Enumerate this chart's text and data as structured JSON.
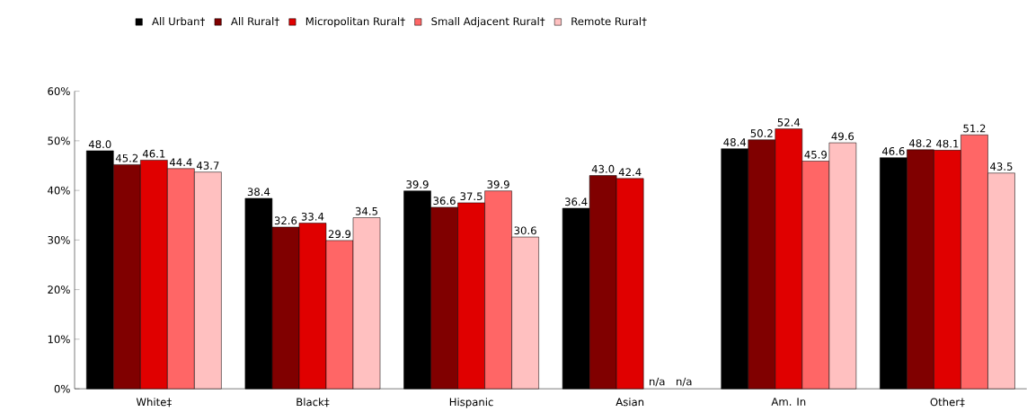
{
  "chart_data": {
    "type": "bar",
    "categories": [
      "White‡",
      "Black‡",
      "Hispanic",
      "Asian",
      "Am. In",
      "Other‡"
    ],
    "series": [
      {
        "name": "All Urban†",
        "color": "#000000",
        "values": [
          48.0,
          38.4,
          39.9,
          36.4,
          48.4,
          46.6
        ],
        "value_labels": [
          "48.0",
          "38.4",
          "39.9",
          "36.4",
          "48.4",
          "46.6"
        ]
      },
      {
        "name": "All Rural†",
        "color": "#800000",
        "values": [
          45.2,
          32.6,
          36.6,
          43.0,
          50.2,
          48.2
        ],
        "value_labels": [
          "45.2",
          "32.6",
          "36.6",
          "43.0",
          "50.2",
          "48.2"
        ]
      },
      {
        "name": "Micropolitan Rural†",
        "color": "#e00000",
        "values": [
          46.1,
          33.4,
          37.5,
          42.4,
          52.4,
          48.1
        ],
        "value_labels": [
          "46.1",
          "33.4",
          "37.5",
          "42.4",
          "52.4",
          "48.1"
        ]
      },
      {
        "name": "Small Adjacent Rural†",
        "color": "#ff6666",
        "values": [
          44.4,
          29.9,
          39.9,
          null,
          45.9,
          51.2
        ],
        "value_labels": [
          "44.4",
          "29.9",
          "39.9",
          "n/a",
          "45.9",
          "51.2"
        ]
      },
      {
        "name": "Remote Rural†",
        "color": "#ffc0c0",
        "values": [
          43.7,
          34.5,
          30.6,
          null,
          49.6,
          43.5
        ],
        "value_labels": [
          "43.7",
          "34.5",
          "30.6",
          "n/a",
          "49.6",
          "43.5"
        ]
      }
    ],
    "ylim": [
      0,
      60
    ],
    "yticks": [
      {
        "value": 0,
        "label": "0%"
      },
      {
        "value": 10,
        "label": "10%"
      },
      {
        "value": 20,
        "label": "20%"
      },
      {
        "value": 30,
        "label": "30%"
      },
      {
        "value": 40,
        "label": "40%"
      },
      {
        "value": 50,
        "label": "50%"
      },
      {
        "value": 60,
        "label": "60%"
      }
    ],
    "legend": "top left",
    "grid": false
  }
}
